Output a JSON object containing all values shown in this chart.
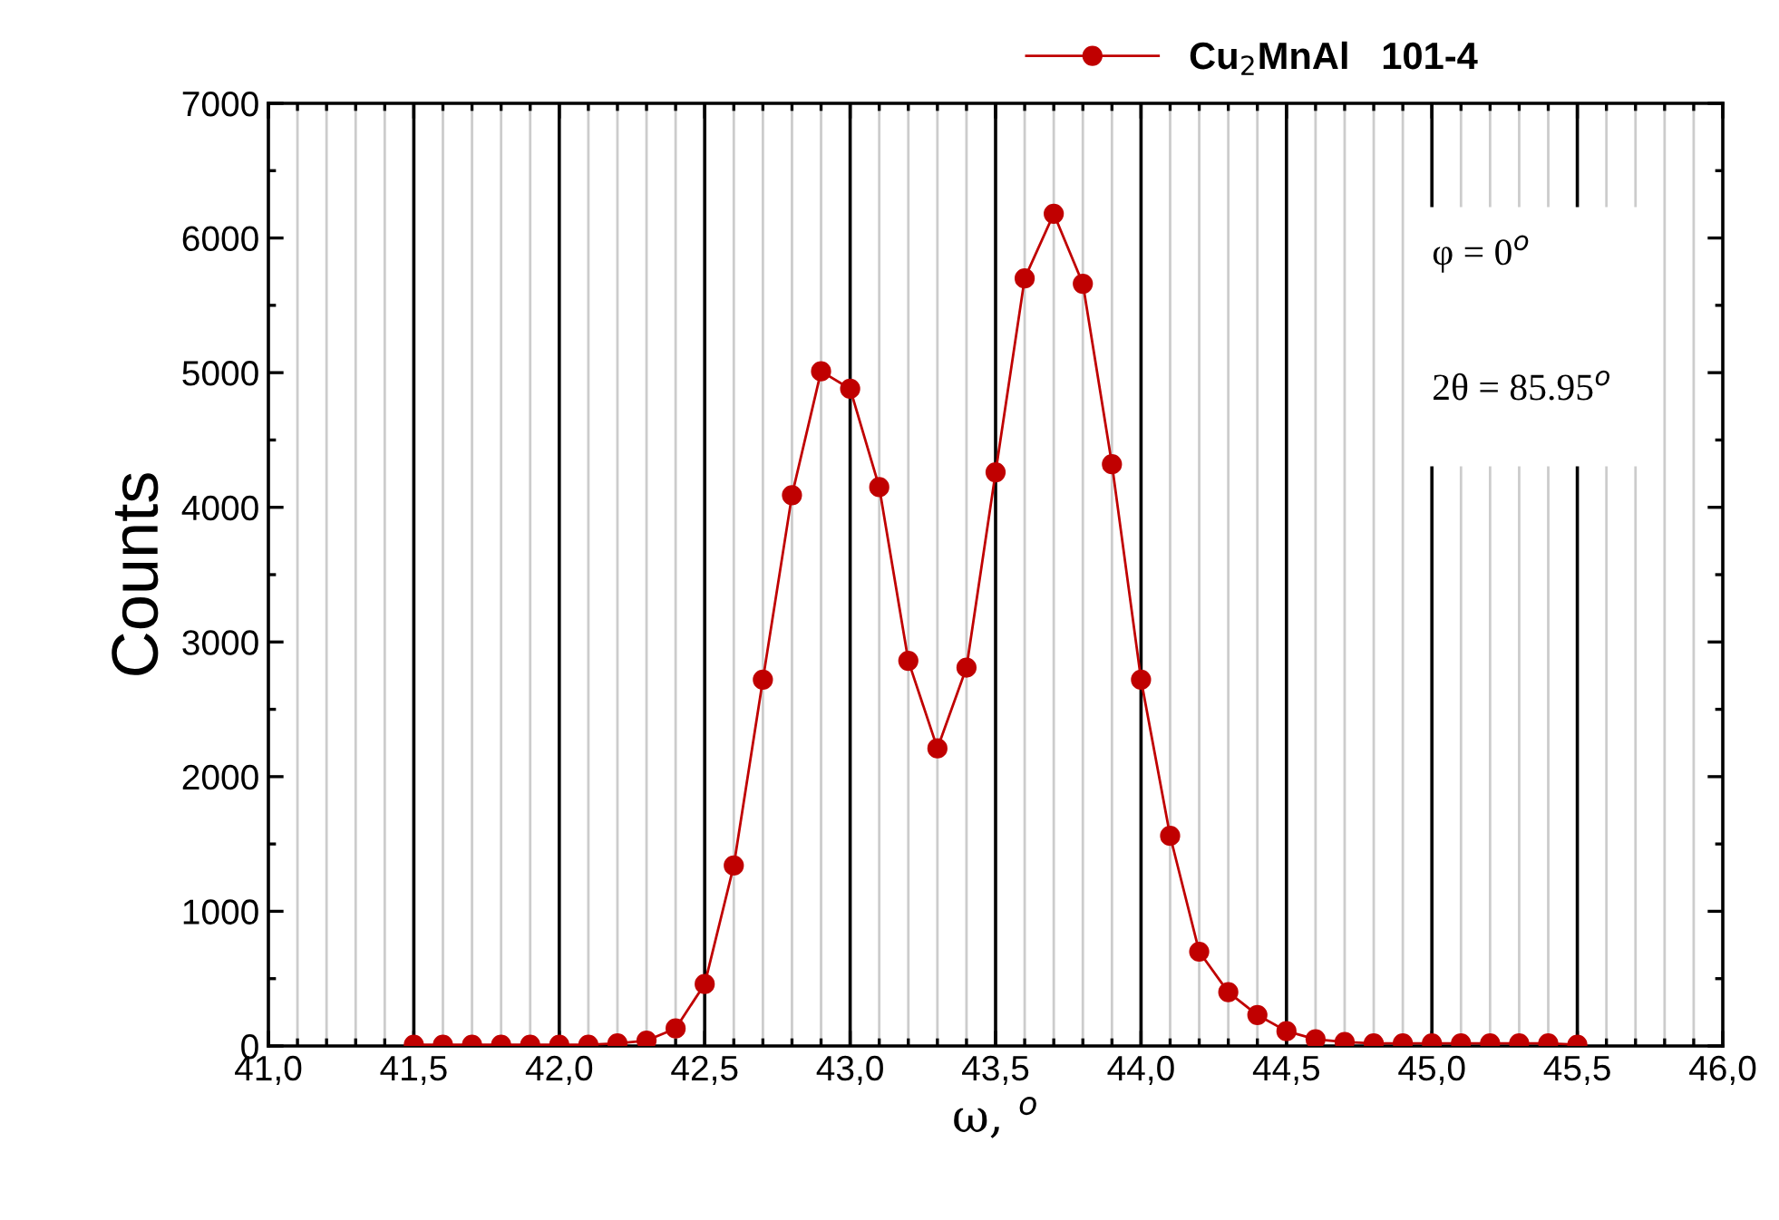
{
  "chart_data": {
    "type": "line",
    "xlabel": "ω, $^{o}$",
    "ylabel": "Counts",
    "annotations": [
      "φ = 0$^{o}$",
      "2θ = 85.95$^{o}$"
    ],
    "x": [
      41.5,
      41.6,
      41.7,
      41.8,
      41.9,
      42.0,
      42.1,
      42.2,
      42.3,
      42.4,
      42.5,
      42.6,
      42.7,
      42.8,
      42.9,
      43.0,
      43.1,
      43.2,
      43.3,
      43.4,
      43.5,
      43.6,
      43.7,
      43.8,
      43.9,
      44.0,
      44.1,
      44.2,
      44.3,
      44.4,
      44.5,
      44.6,
      44.7,
      44.8,
      44.9,
      45.0,
      45.1,
      45.2,
      45.3,
      45.4,
      45.5
    ],
    "series": [
      {
        "name": "Cu$_{2}$MnAl   101-4",
        "color": "#c00000",
        "values": [
          10,
          10,
          10,
          10,
          10,
          10,
          10,
          20,
          40,
          130,
          460,
          1340,
          2720,
          4090,
          5010,
          4880,
          4150,
          2860,
          2210,
          2810,
          4260,
          5700,
          6180,
          5660,
          4320,
          2720,
          1560,
          700,
          400,
          230,
          110,
          50,
          30,
          20,
          20,
          20,
          20,
          20,
          20,
          20,
          10
        ]
      }
    ],
    "xlim": [
      41.0,
      46.0
    ],
    "ylim": [
      0,
      7000
    ],
    "xticks": [
      {
        "value": 41.0,
        "label": "41,0"
      },
      {
        "value": 41.1,
        "label": null
      },
      {
        "value": 41.2,
        "label": null
      },
      {
        "value": 41.3,
        "label": null
      },
      {
        "value": 41.4,
        "label": null
      },
      {
        "value": 41.5,
        "label": "41,5"
      },
      {
        "value": 41.6,
        "label": null
      },
      {
        "value": 41.7,
        "label": null
      },
      {
        "value": 41.8,
        "label": null
      },
      {
        "value": 41.9,
        "label": null
      },
      {
        "value": 42.0,
        "label": "42,0"
      },
      {
        "value": 42.1,
        "label": null
      },
      {
        "value": 42.2,
        "label": null
      },
      {
        "value": 42.3,
        "label": null
      },
      {
        "value": 42.4,
        "label": null
      },
      {
        "value": 42.5,
        "label": "42,5"
      },
      {
        "value": 42.6,
        "label": null
      },
      {
        "value": 42.7,
        "label": null
      },
      {
        "value": 42.8,
        "label": null
      },
      {
        "value": 42.9,
        "label": null
      },
      {
        "value": 43.0,
        "label": "43,0"
      },
      {
        "value": 43.1,
        "label": null
      },
      {
        "value": 43.2,
        "label": null
      },
      {
        "value": 43.3,
        "label": null
      },
      {
        "value": 43.4,
        "label": null
      },
      {
        "value": 43.5,
        "label": "43,5"
      },
      {
        "value": 43.6,
        "label": null
      },
      {
        "value": 43.7,
        "label": null
      },
      {
        "value": 43.8,
        "label": null
      },
      {
        "value": 43.9,
        "label": null
      },
      {
        "value": 44.0,
        "label": "44,0"
      },
      {
        "value": 44.1,
        "label": null
      },
      {
        "value": 44.2,
        "label": null
      },
      {
        "value": 44.3,
        "label": null
      },
      {
        "value": 44.4,
        "label": null
      },
      {
        "value": 44.5,
        "label": "44,5"
      },
      {
        "value": 44.6,
        "label": null
      },
      {
        "value": 44.7,
        "label": null
      },
      {
        "value": 44.8,
        "label": null
      },
      {
        "value": 44.9,
        "label": null
      },
      {
        "value": 45.0,
        "label": "45,0"
      },
      {
        "value": 45.1,
        "label": null
      },
      {
        "value": 45.2,
        "label": null
      },
      {
        "value": 45.3,
        "label": null
      },
      {
        "value": 45.4,
        "label": null
      },
      {
        "value": 45.5,
        "label": "45,5"
      },
      {
        "value": 45.6,
        "label": null
      },
      {
        "value": 45.7,
        "label": null
      },
      {
        "value": 45.8,
        "label": null
      },
      {
        "value": 45.9,
        "label": null
      },
      {
        "value": 46.0,
        "label": "46,0"
      }
    ],
    "yticks": [
      0,
      {
        "value": 500,
        "label": null
      },
      1000,
      {
        "value": 1500,
        "label": null
      },
      2000,
      {
        "value": 2500,
        "label": null
      },
      3000,
      {
        "value": 3500,
        "label": null
      },
      4000,
      {
        "value": 4500,
        "label": null
      },
      5000,
      {
        "value": 5500,
        "label": null
      },
      6000,
      {
        "value": 6500,
        "label": null
      },
      7000
    ],
    "grid": "x",
    "legend": "top right",
    "marker": "circle",
    "line_style": "solid"
  }
}
